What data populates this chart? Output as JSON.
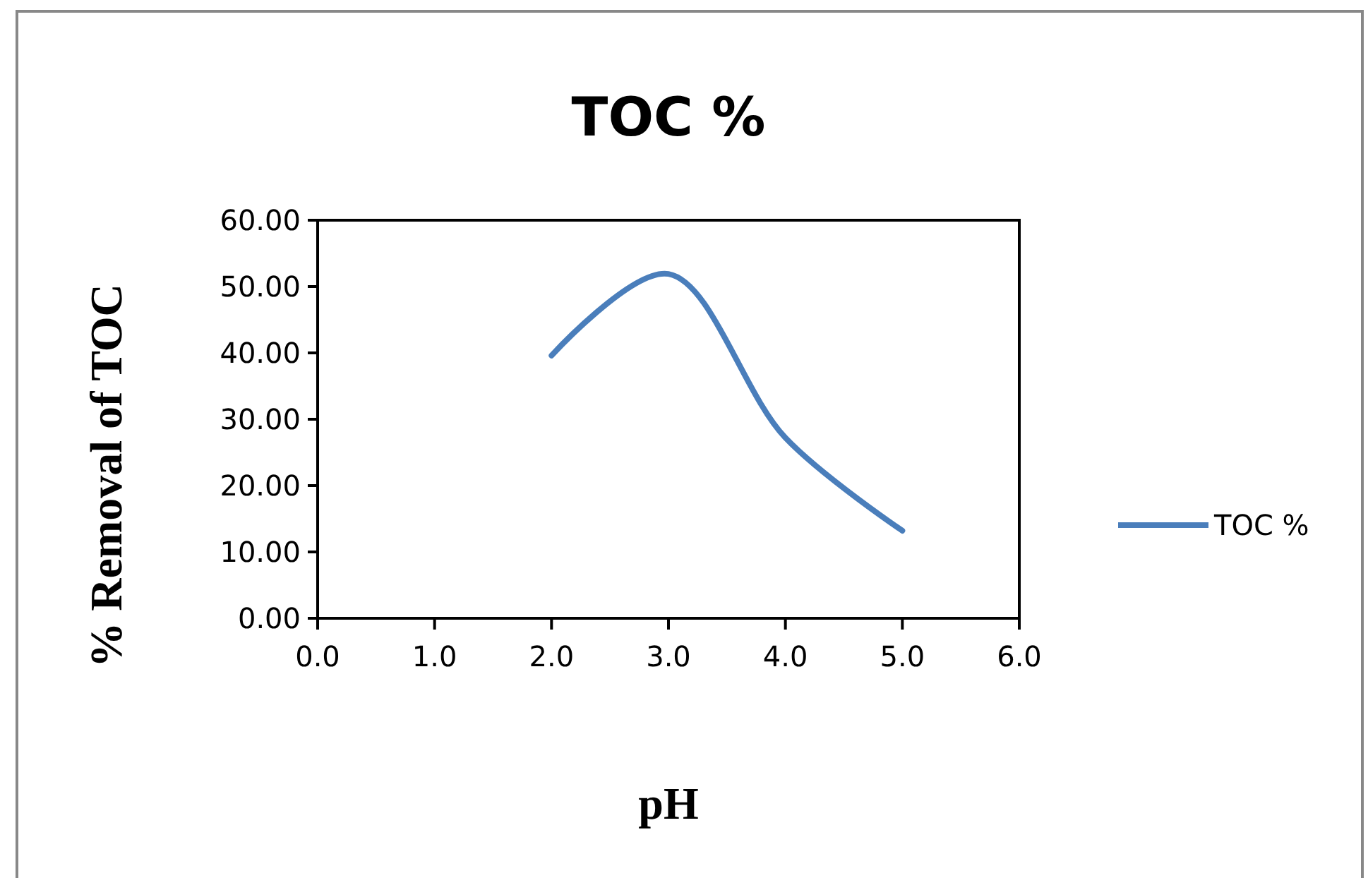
{
  "chart_data": {
    "type": "line",
    "title": "TOC %",
    "xlabel": "pH",
    "ylabel": "% Removal of TOC",
    "x": [
      2,
      3,
      4,
      5
    ],
    "series": [
      {
        "name": "TOC %",
        "color": "#4a7ebb",
        "values": [
          39.6,
          51.9,
          27.2,
          13.2
        ]
      }
    ],
    "xlim": [
      0,
      6
    ],
    "xticks": [
      {
        "value": 0,
        "label": "0.0"
      },
      {
        "value": 1,
        "label": "1.0"
      },
      {
        "value": 2,
        "label": "2.0"
      },
      {
        "value": 3,
        "label": "3.0"
      },
      {
        "value": 4,
        "label": "4.0"
      },
      {
        "value": 5,
        "label": "5.0"
      },
      {
        "value": 6,
        "label": "6.0"
      }
    ],
    "ylim": [
      0,
      60
    ],
    "yticks": [
      {
        "value": 0,
        "label": "0.00"
      },
      {
        "value": 10,
        "label": "10.00"
      },
      {
        "value": 20,
        "label": "20.00"
      },
      {
        "value": 30,
        "label": "30.00"
      },
      {
        "value": 40,
        "label": "40.00"
      },
      {
        "value": 50,
        "label": "50.00"
      },
      {
        "value": 60,
        "label": "60.00"
      }
    ],
    "legend": "right",
    "grid": false,
    "marker": "none",
    "line_style": "solid"
  }
}
